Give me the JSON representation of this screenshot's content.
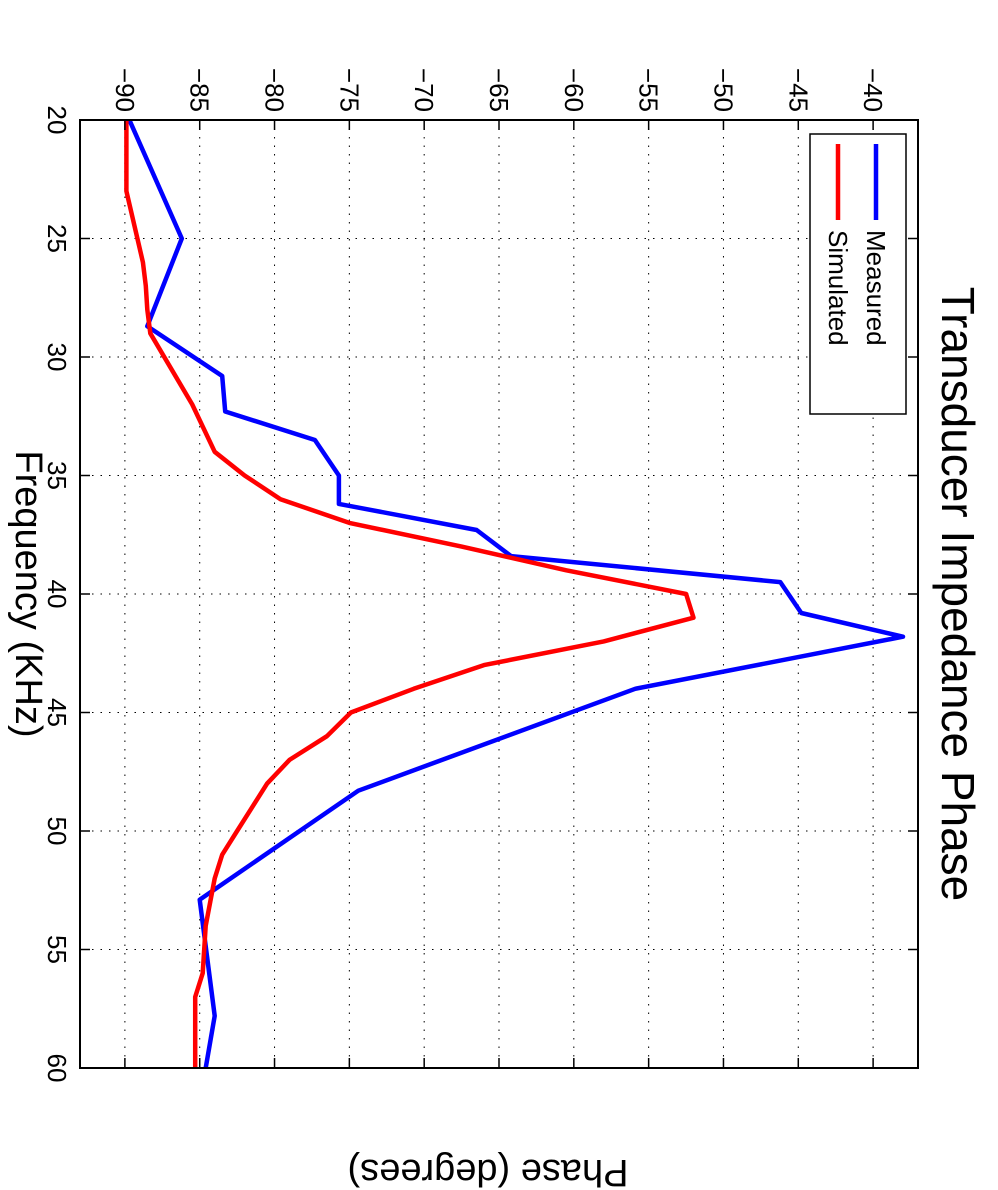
{
  "chart_data": {
    "type": "line",
    "title": "Transducer Impedance Phase",
    "xlabel": "Frequency (KHz)",
    "ylabel": "Phase (degrees)",
    "xlim": [
      20,
      60
    ],
    "ylim": [
      -93,
      -37
    ],
    "grid": true,
    "legend": "top-left",
    "x_ticks": [
      {
        "value": 20,
        "label": "20"
      },
      {
        "value": 25,
        "label": "25"
      },
      {
        "value": 30,
        "label": "30"
      },
      {
        "value": 35,
        "label": "35"
      },
      {
        "value": 40,
        "label": "40"
      },
      {
        "value": 45,
        "label": "45"
      },
      {
        "value": 50,
        "label": "50"
      },
      {
        "value": 55,
        "label": "55"
      },
      {
        "value": 60,
        "label": "60"
      }
    ],
    "y_ticks": [
      {
        "value": -40,
        "label": "−40"
      },
      {
        "value": -45,
        "label": "−45"
      },
      {
        "value": -50,
        "label": "−50"
      },
      {
        "value": -55,
        "label": "−55"
      },
      {
        "value": -60,
        "label": "−60"
      },
      {
        "value": -65,
        "label": "−65"
      },
      {
        "value": -70,
        "label": "−70"
      },
      {
        "value": -75,
        "label": "−75"
      },
      {
        "value": -80,
        "label": "−80"
      },
      {
        "value": -85,
        "label": "−85"
      },
      {
        "value": -90,
        "label": "−90"
      }
    ],
    "series": [
      {
        "name": "Measured",
        "color": "#0000ff",
        "points": [
          [
            20,
            -89.7
          ],
          [
            25,
            -86.2
          ],
          [
            28.7,
            -88.5
          ],
          [
            30.8,
            -83.5
          ],
          [
            32.3,
            -83.3
          ],
          [
            33.5,
            -77.3
          ],
          [
            35,
            -75.7
          ],
          [
            36.2,
            -75.7
          ],
          [
            37.3,
            -66.5
          ],
          [
            38.4,
            -64.2
          ],
          [
            39.5,
            -46.2
          ],
          [
            40.8,
            -44.8
          ],
          [
            41.8,
            -38.0
          ],
          [
            44,
            -55.9
          ],
          [
            48.3,
            -74.4
          ],
          [
            52.9,
            -85.0
          ],
          [
            57.8,
            -84.0
          ],
          [
            60,
            -84.6
          ]
        ]
      },
      {
        "name": "Simulated",
        "color": "#ff0000",
        "points": [
          [
            20,
            -89.9
          ],
          [
            23,
            -89.9
          ],
          [
            26,
            -88.8
          ],
          [
            27,
            -88.6
          ],
          [
            28,
            -88.5
          ],
          [
            29,
            -88.3
          ],
          [
            32,
            -85.5
          ],
          [
            34,
            -84.0
          ],
          [
            35,
            -82.0
          ],
          [
            36,
            -79.6
          ],
          [
            37,
            -75.0
          ],
          [
            38,
            -67.5
          ],
          [
            39,
            -60.5
          ],
          [
            40,
            -52.5
          ],
          [
            41,
            -52.0
          ],
          [
            42,
            -58.0
          ],
          [
            43,
            -66.0
          ],
          [
            44,
            -70.7
          ],
          [
            45,
            -74.9
          ],
          [
            46,
            -76.5
          ],
          [
            47,
            -79.0
          ],
          [
            48,
            -80.5
          ],
          [
            49,
            -81.5
          ],
          [
            50,
            -82.5
          ],
          [
            51,
            -83.5
          ],
          [
            52,
            -84.0
          ],
          [
            53,
            -84.3
          ],
          [
            54,
            -84.6
          ],
          [
            56,
            -84.8
          ],
          [
            57,
            -85.3
          ],
          [
            60,
            -85.3
          ]
        ]
      }
    ]
  }
}
